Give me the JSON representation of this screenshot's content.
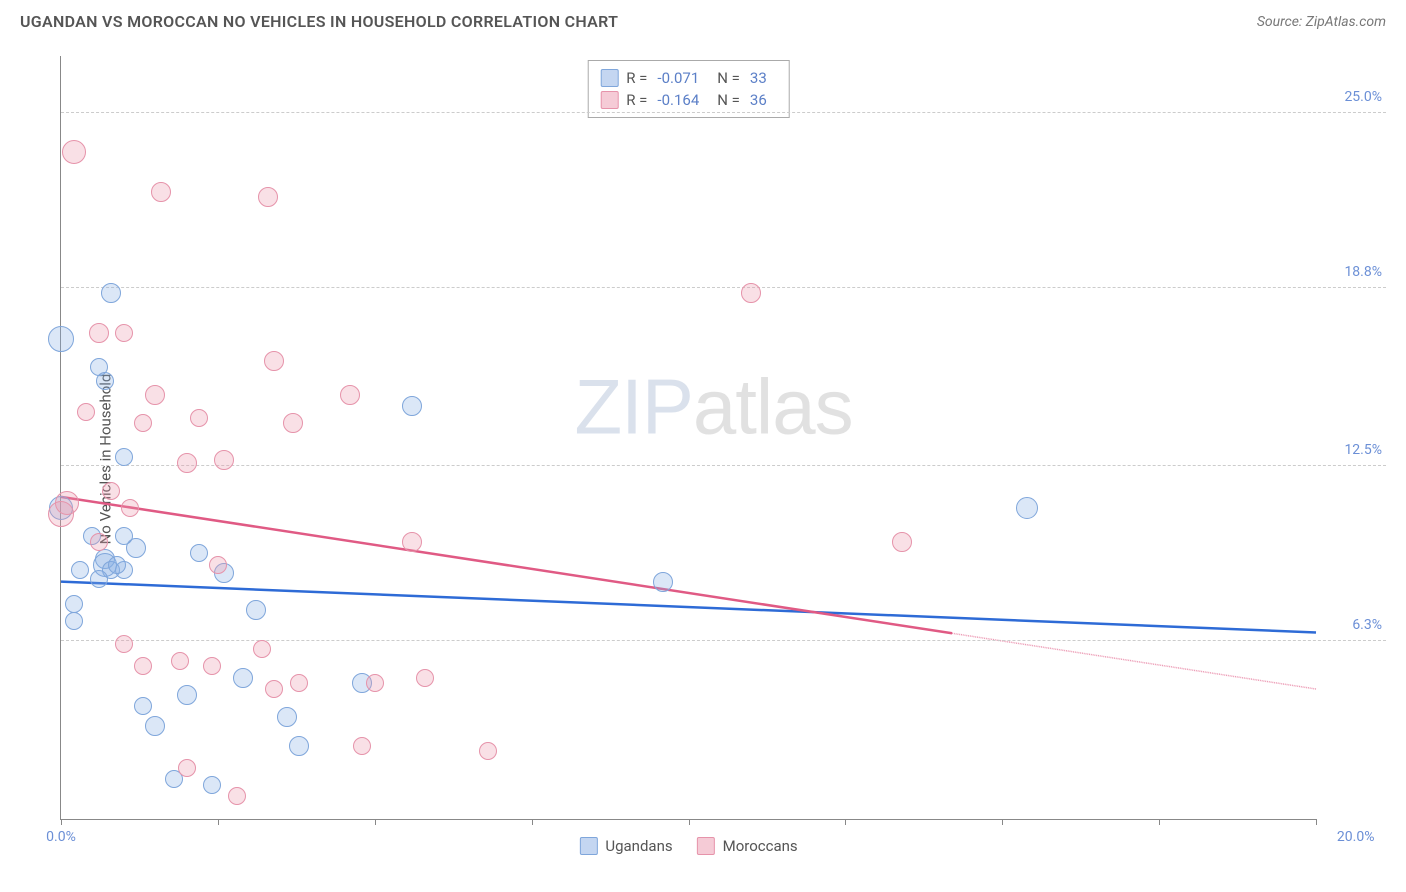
{
  "header": {
    "title": "UGANDAN VS MOROCCAN NO VEHICLES IN HOUSEHOLD CORRELATION CHART",
    "source_prefix": "Source: ",
    "source": "ZipAtlas.com"
  },
  "watermark": {
    "bold": "ZIP",
    "thin": "atlas"
  },
  "chart": {
    "type": "scatter",
    "ylabel": "No Vehicles in Household",
    "xlim": [
      0,
      20
    ],
    "ylim": [
      0,
      27
    ],
    "x_ticks": [
      0,
      2.5,
      5,
      7.5,
      10,
      12.5,
      15,
      17.5,
      20
    ],
    "x_tick_labels": {
      "0": "0.0%",
      "20": "20.0%"
    },
    "y_gridlines": [
      6.3,
      12.5,
      18.8,
      25.0
    ],
    "y_tick_labels": [
      "6.3%",
      "12.5%",
      "18.8%",
      "25.0%"
    ],
    "background_color": "#ffffff",
    "grid_color": "#cccccc",
    "axis_color": "#888888",
    "label_color": "#6b8fd6",
    "series": [
      {
        "key": "ugandans",
        "label": "Ugandans",
        "color_fill": "rgba(137,174,227,0.30)",
        "color_stroke": "#7fa6db",
        "trend_color": "#2e6bd6",
        "R": "-0.071",
        "N": "33",
        "trend": {
          "x1": 0,
          "y1": 8.4,
          "x2": 20,
          "y2": 6.6,
          "solid_until_x": 20
        },
        "points": [
          {
            "x": 0.0,
            "y": 17.0,
            "r": 13
          },
          {
            "x": 0.8,
            "y": 18.6,
            "r": 10
          },
          {
            "x": 0.6,
            "y": 16.0,
            "r": 9
          },
          {
            "x": 0.7,
            "y": 15.5,
            "r": 9
          },
          {
            "x": 1.0,
            "y": 12.8,
            "r": 9
          },
          {
            "x": 0.0,
            "y": 11.0,
            "r": 12
          },
          {
            "x": 0.2,
            "y": 7.6,
            "r": 9
          },
          {
            "x": 0.2,
            "y": 7.0,
            "r": 9
          },
          {
            "x": 0.7,
            "y": 9.2,
            "r": 10
          },
          {
            "x": 0.7,
            "y": 9.0,
            "r": 12
          },
          {
            "x": 0.8,
            "y": 8.8,
            "r": 9
          },
          {
            "x": 1.2,
            "y": 9.6,
            "r": 10
          },
          {
            "x": 1.0,
            "y": 8.8,
            "r": 9
          },
          {
            "x": 1.3,
            "y": 4.0,
            "r": 9
          },
          {
            "x": 1.5,
            "y": 3.3,
            "r": 10
          },
          {
            "x": 2.0,
            "y": 4.4,
            "r": 10
          },
          {
            "x": 2.6,
            "y": 8.7,
            "r": 10
          },
          {
            "x": 2.9,
            "y": 5.0,
            "r": 10
          },
          {
            "x": 3.1,
            "y": 7.4,
            "r": 10
          },
          {
            "x": 3.6,
            "y": 3.6,
            "r": 10
          },
          {
            "x": 3.8,
            "y": 2.6,
            "r": 10
          },
          {
            "x": 4.8,
            "y": 4.8,
            "r": 10
          },
          {
            "x": 5.6,
            "y": 14.6,
            "r": 10
          },
          {
            "x": 1.8,
            "y": 1.4,
            "r": 9
          },
          {
            "x": 2.4,
            "y": 1.2,
            "r": 9
          },
          {
            "x": 9.6,
            "y": 8.4,
            "r": 10
          },
          {
            "x": 15.4,
            "y": 11.0,
            "r": 11
          },
          {
            "x": 0.5,
            "y": 10.0,
            "r": 9
          },
          {
            "x": 1.0,
            "y": 10.0,
            "r": 9
          },
          {
            "x": 0.9,
            "y": 9.0,
            "r": 9
          },
          {
            "x": 2.2,
            "y": 9.4,
            "r": 9
          },
          {
            "x": 0.3,
            "y": 8.8,
            "r": 9
          },
          {
            "x": 0.6,
            "y": 8.5,
            "r": 9
          }
        ]
      },
      {
        "key": "moroccans",
        "label": "Moroccans",
        "color_fill": "rgba(236,152,173,0.30)",
        "color_stroke": "#e693aa",
        "trend_color": "#e05a84",
        "R": "-0.164",
        "N": "36",
        "trend": {
          "x1": 0,
          "y1": 11.4,
          "x2": 20,
          "y2": 4.6,
          "solid_until_x": 14.2
        },
        "points": [
          {
            "x": 0.2,
            "y": 23.6,
            "r": 12
          },
          {
            "x": 1.6,
            "y": 22.2,
            "r": 10
          },
          {
            "x": 0.6,
            "y": 17.2,
            "r": 10
          },
          {
            "x": 1.0,
            "y": 17.2,
            "r": 9
          },
          {
            "x": 0.4,
            "y": 14.4,
            "r": 9
          },
          {
            "x": 1.3,
            "y": 14.0,
            "r": 9
          },
          {
            "x": 1.5,
            "y": 15.0,
            "r": 10
          },
          {
            "x": 2.2,
            "y": 14.2,
            "r": 9
          },
          {
            "x": 2.6,
            "y": 12.7,
            "r": 10
          },
          {
            "x": 3.4,
            "y": 16.2,
            "r": 10
          },
          {
            "x": 3.7,
            "y": 14.0,
            "r": 10
          },
          {
            "x": 4.6,
            "y": 15.0,
            "r": 10
          },
          {
            "x": 3.3,
            "y": 22.0,
            "r": 10
          },
          {
            "x": 5.6,
            "y": 9.8,
            "r": 10
          },
          {
            "x": 2.0,
            "y": 12.6,
            "r": 10
          },
          {
            "x": 2.5,
            "y": 9.0,
            "r": 9
          },
          {
            "x": 0.1,
            "y": 11.2,
            "r": 12
          },
          {
            "x": 0.0,
            "y": 10.8,
            "r": 13
          },
          {
            "x": 0.6,
            "y": 9.8,
            "r": 9
          },
          {
            "x": 0.8,
            "y": 11.6,
            "r": 9
          },
          {
            "x": 1.1,
            "y": 11.0,
            "r": 9
          },
          {
            "x": 1.0,
            "y": 6.2,
            "r": 9
          },
          {
            "x": 1.3,
            "y": 5.4,
            "r": 9
          },
          {
            "x": 1.9,
            "y": 5.6,
            "r": 9
          },
          {
            "x": 2.4,
            "y": 5.4,
            "r": 9
          },
          {
            "x": 3.2,
            "y": 6.0,
            "r": 9
          },
          {
            "x": 3.4,
            "y": 4.6,
            "r": 9
          },
          {
            "x": 3.8,
            "y": 4.8,
            "r": 9
          },
          {
            "x": 4.8,
            "y": 2.6,
            "r": 9
          },
          {
            "x": 5.0,
            "y": 4.8,
            "r": 9
          },
          {
            "x": 5.8,
            "y": 5.0,
            "r": 9
          },
          {
            "x": 6.8,
            "y": 2.4,
            "r": 9
          },
          {
            "x": 2.0,
            "y": 1.8,
            "r": 9
          },
          {
            "x": 2.8,
            "y": 0.8,
            "r": 9
          },
          {
            "x": 11.0,
            "y": 18.6,
            "r": 10
          },
          {
            "x": 13.4,
            "y": 9.8,
            "r": 10
          }
        ]
      }
    ]
  }
}
